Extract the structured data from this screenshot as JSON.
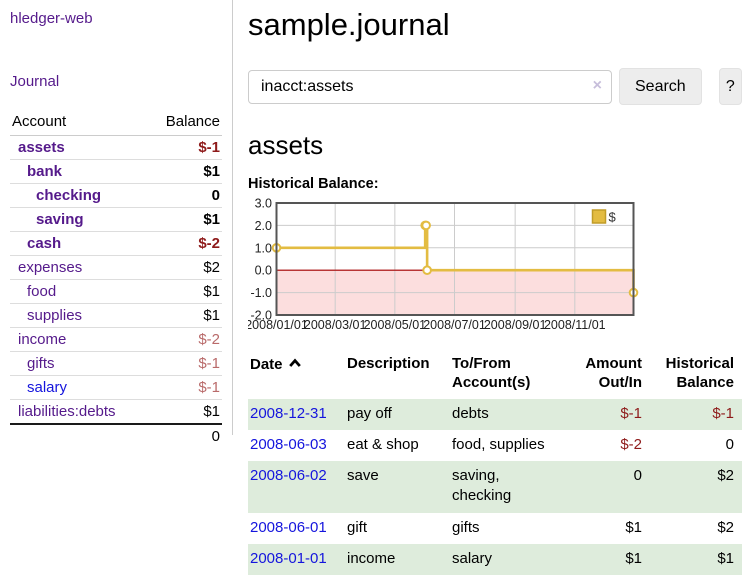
{
  "sidebar": {
    "brand": "hledger-web",
    "journal_link": "Journal",
    "accounts": {
      "headers": {
        "account": "Account",
        "balance": "Balance"
      },
      "rows": [
        {
          "name": "assets",
          "level": 1,
          "bold": true,
          "link": "purple",
          "balance": "$-1",
          "bal": "neg"
        },
        {
          "name": "bank",
          "level": 2,
          "bold": true,
          "link": "purple",
          "balance": "$1",
          "bal": ""
        },
        {
          "name": "checking",
          "level": 3,
          "bold": true,
          "link": "purple",
          "balance": "0",
          "bal": ""
        },
        {
          "name": "saving",
          "level": 3,
          "bold": true,
          "link": "purple",
          "balance": "$1",
          "bal": ""
        },
        {
          "name": "cash",
          "level": 2,
          "bold": true,
          "link": "purple",
          "balance": "$-2",
          "bal": "neg"
        },
        {
          "name": "expenses",
          "level": 1,
          "bold": false,
          "link": "purple",
          "balance": "$2",
          "bal": ""
        },
        {
          "name": "food",
          "level": 2,
          "bold": false,
          "link": "purple",
          "balance": "$1",
          "bal": ""
        },
        {
          "name": "supplies",
          "level": 2,
          "bold": false,
          "link": "purple",
          "balance": "$1",
          "bal": ""
        },
        {
          "name": "income",
          "level": 1,
          "bold": false,
          "link": "purple",
          "balance": "$-2",
          "bal": "negsoft"
        },
        {
          "name": "gifts",
          "level": 2,
          "bold": false,
          "link": "purple",
          "balance": "$-1",
          "bal": "negsoft"
        },
        {
          "name": "salary",
          "level": 2,
          "bold": false,
          "link": "blue",
          "balance": "$-1",
          "bal": "negsoft"
        },
        {
          "name": "liabilities:debts",
          "level": 1,
          "bold": false,
          "link": "purple",
          "balance": "$1",
          "bal": ""
        }
      ],
      "total": "0"
    }
  },
  "main": {
    "title": "sample.journal",
    "search": {
      "value": "inacct:assets",
      "clear_glyph": "×",
      "button_label": "Search",
      "help_label": "?"
    },
    "account_heading": "assets",
    "chart_label": "Historical Balance:",
    "transactions": {
      "headers": {
        "date": "Date",
        "description": "Description",
        "accounts": "To/From Account(s)",
        "amount": "Amount Out/In",
        "balance": "Historical Balance"
      },
      "sort_icon": "chevron-up",
      "rows": [
        {
          "date": "2008-12-31",
          "description": "pay off",
          "accounts": "debts",
          "amount": "$-1",
          "amount_neg": true,
          "balance": "$-1",
          "balance_neg": true,
          "shade": true
        },
        {
          "date": "2008-06-03",
          "description": "eat & shop",
          "accounts": "food, supplies",
          "amount": "$-2",
          "amount_neg": true,
          "balance": "0",
          "balance_neg": false,
          "shade": false
        },
        {
          "date": "2008-06-02",
          "description": "save",
          "accounts": "saving, checking",
          "amount": "0",
          "amount_neg": false,
          "balance": "$2",
          "balance_neg": false,
          "shade": true
        },
        {
          "date": "2008-06-01",
          "description": "gift",
          "accounts": "gifts",
          "amount": "$1",
          "amount_neg": false,
          "balance": "$2",
          "balance_neg": false,
          "shade": false
        },
        {
          "date": "2008-01-01",
          "description": "income",
          "accounts": "salary",
          "amount": "$1",
          "amount_neg": false,
          "balance": "$1",
          "balance_neg": false,
          "shade": true
        }
      ]
    }
  },
  "chart_data": {
    "type": "line",
    "step": true,
    "title": "Historical Balance:",
    "legend": {
      "label": "$",
      "position": "top-right"
    },
    "series": [
      {
        "name": "$",
        "points": [
          [
            "2008-01-01",
            1
          ],
          [
            "2008-06-01",
            2
          ],
          [
            "2008-06-02",
            2
          ],
          [
            "2008-06-03",
            0
          ],
          [
            "2008-12-31",
            -1
          ]
        ]
      }
    ],
    "x_ticks": [
      "2008/01/01",
      "2008/03/01",
      "2008/05/01",
      "2008/07/01",
      "2008/09/01",
      "2008/11/01"
    ],
    "y_ticks": [
      "3.0",
      "2.0",
      "1.0",
      "0.0",
      "-1.0",
      "-2.0"
    ],
    "ylim": [
      -2,
      3
    ],
    "x_epoch": "2008-01-01",
    "x_span_days": 365,
    "grid": true
  },
  "colors": {
    "link_purple": "#551a8b",
    "link_blue": "#1515dd",
    "negative_strong": "#8e1a1a",
    "negative_soft": "#b96a6a",
    "row_green": "#deecdc",
    "chart_line": "#e3bc42",
    "chart_negative_bg": "#fcdede",
    "chart_zero_line": "#aa0000",
    "chart_grid": "#cccccc",
    "chart_border": "#555555"
  }
}
